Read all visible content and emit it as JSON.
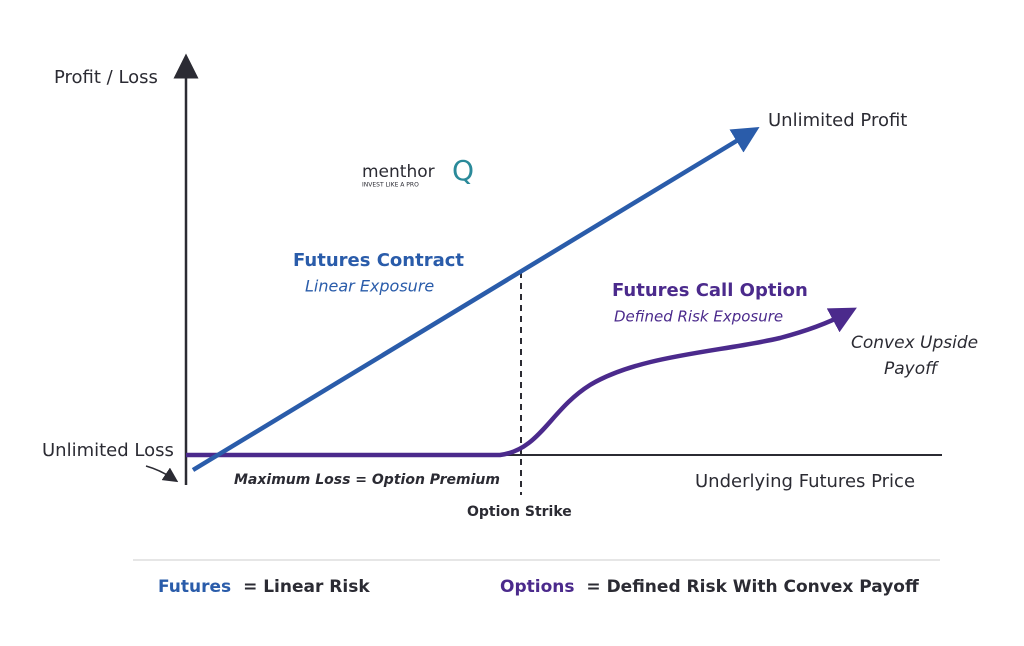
{
  "axes": {
    "y_label": "Profit / Loss",
    "x_label": "Underlying Futures Price"
  },
  "logo": {
    "name": "menthor",
    "mark": "Q",
    "tagline": "INVEST LIKE A PRO"
  },
  "labels": {
    "unlimited_profit": "Unlimited Profit",
    "unlimited_loss": "Unlimited Loss",
    "futures_title": "Futures Contract",
    "futures_subtitle": "Linear Exposure",
    "option_title": "Futures Call Option",
    "option_subtitle": "Defined Risk Exposure",
    "convex_line1": "Convex Upside",
    "convex_line2": "Payoff",
    "max_loss": "Maximum Loss = Option Premium",
    "strike": "Option Strike"
  },
  "footer": {
    "left": {
      "term": "Futures",
      "text": "= Linear Risk"
    },
    "right": {
      "term": "Options",
      "text": "= Defined Risk With Convex Payoff"
    }
  }
}
